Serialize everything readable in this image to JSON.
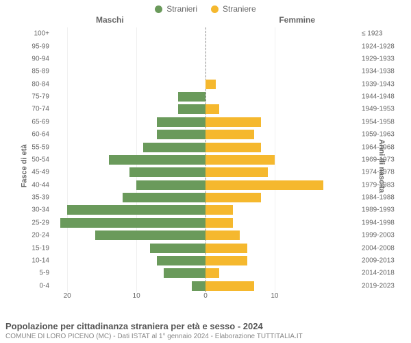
{
  "legend": {
    "male_label": "Stranieri",
    "female_label": "Straniere"
  },
  "colors": {
    "male": "#6a9a5b",
    "female": "#f5b82e",
    "grid": "#f0f0f0",
    "center": "#888888",
    "text": "#666666",
    "bg": "#ffffff"
  },
  "headers": {
    "male": "Maschi",
    "female": "Femmine"
  },
  "axis_titles": {
    "left": "Fasce di età",
    "right": "Anni di nascita"
  },
  "x_axis": {
    "max": 22,
    "ticks_male": [
      20,
      10,
      0
    ],
    "ticks_female": [
      0,
      10
    ]
  },
  "rows": [
    {
      "age": "100+",
      "birth": "≤ 1923",
      "m": 0,
      "f": 0
    },
    {
      "age": "95-99",
      "birth": "1924-1928",
      "m": 0,
      "f": 0
    },
    {
      "age": "90-94",
      "birth": "1929-1933",
      "m": 0,
      "f": 0
    },
    {
      "age": "85-89",
      "birth": "1934-1938",
      "m": 0,
      "f": 0
    },
    {
      "age": "80-84",
      "birth": "1939-1943",
      "m": 0,
      "f": 1.5
    },
    {
      "age": "75-79",
      "birth": "1944-1948",
      "m": 4,
      "f": 0
    },
    {
      "age": "70-74",
      "birth": "1949-1953",
      "m": 4,
      "f": 2
    },
    {
      "age": "65-69",
      "birth": "1954-1958",
      "m": 7,
      "f": 8
    },
    {
      "age": "60-64",
      "birth": "1959-1963",
      "m": 7,
      "f": 7
    },
    {
      "age": "55-59",
      "birth": "1964-1968",
      "m": 9,
      "f": 8
    },
    {
      "age": "50-54",
      "birth": "1969-1973",
      "m": 14,
      "f": 10
    },
    {
      "age": "45-49",
      "birth": "1974-1978",
      "m": 11,
      "f": 9
    },
    {
      "age": "40-44",
      "birth": "1979-1983",
      "m": 10,
      "f": 17
    },
    {
      "age": "35-39",
      "birth": "1984-1988",
      "m": 12,
      "f": 8
    },
    {
      "age": "30-34",
      "birth": "1989-1993",
      "m": 20,
      "f": 4
    },
    {
      "age": "25-29",
      "birth": "1994-1998",
      "m": 21,
      "f": 4
    },
    {
      "age": "20-24",
      "birth": "1999-2003",
      "m": 16,
      "f": 5
    },
    {
      "age": "15-19",
      "birth": "2004-2008",
      "m": 8,
      "f": 6
    },
    {
      "age": "10-14",
      "birth": "2009-2013",
      "m": 7,
      "f": 6
    },
    {
      "age": "5-9",
      "birth": "2014-2018",
      "m": 6,
      "f": 2
    },
    {
      "age": "0-4",
      "birth": "2019-2023",
      "m": 2,
      "f": 7
    }
  ],
  "footer": {
    "title": "Popolazione per cittadinanza straniera per età e sesso - 2024",
    "subtitle": "COMUNE DI LORO PICENO (MC) - Dati ISTAT al 1° gennaio 2024 - Elaborazione TUTTITALIA.IT"
  },
  "styling": {
    "font_family": "Arial, Helvetica, sans-serif",
    "legend_fontsize": 12,
    "header_fontsize": 12,
    "tick_fontsize": 10,
    "axis_title_fontsize": 11,
    "footer_title_fontsize": 13,
    "footer_sub_fontsize": 10,
    "bar_height_ratio": 0.76
  }
}
